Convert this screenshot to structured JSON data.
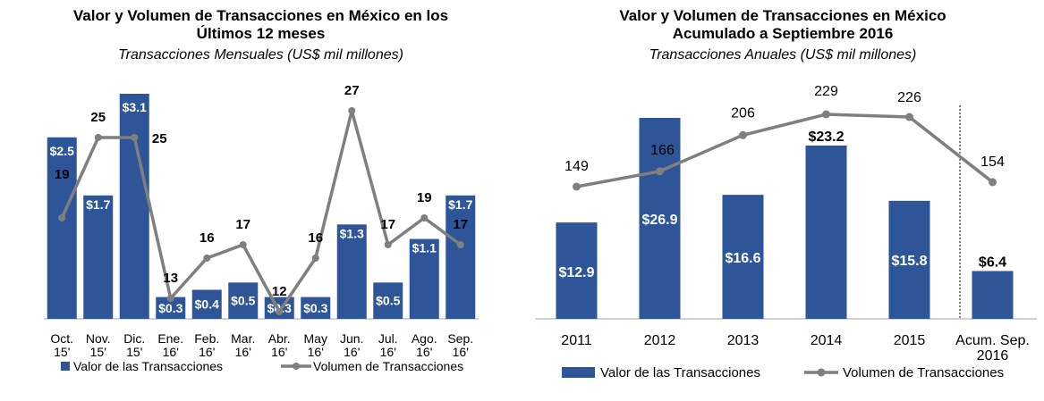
{
  "colors": {
    "bar": "#2e5597",
    "line": "#7f7f7f",
    "axis": "#a6a6a6",
    "divider": "#000000"
  },
  "chart_data": [
    {
      "type": "bar",
      "title": "Valor y Volumen de Transacciones en México en los Últimos 12 meses",
      "title_lines": [
        "Valor y Volumen de Transacciones en México en los",
        "Últimos 12 meses"
      ],
      "subtitle": "Transacciones Mensuales (US$ mil millones)",
      "categories": [
        [
          "Oct.",
          "15'"
        ],
        [
          "Nov.",
          "15'"
        ],
        [
          "Dic.",
          "15'"
        ],
        [
          "Ene.",
          "16'"
        ],
        [
          "Feb.",
          "16'"
        ],
        [
          "Mar.",
          "16'"
        ],
        [
          "Abr.",
          "16'"
        ],
        [
          "May",
          "16'"
        ],
        [
          "Jun.",
          "16'"
        ],
        [
          "Jul.",
          "16'"
        ],
        [
          "Ago.",
          "16'"
        ],
        [
          "Sep.",
          "16'"
        ]
      ],
      "series": [
        {
          "name": "Valor de las Transacciones",
          "type": "bar",
          "values": [
            2.5,
            1.7,
            3.1,
            0.3,
            0.4,
            0.5,
            0.3,
            0.3,
            1.3,
            0.5,
            1.1,
            1.7
          ],
          "labels": [
            "$2.5",
            "$1.7",
            "$3.1",
            "$0.3",
            "$0.4",
            "$0.5",
            "$0.3",
            "$0.3",
            "$1.3",
            "$0.5",
            "$1.1",
            "$1.7"
          ]
        },
        {
          "name": "Volumen de Transacciones",
          "type": "line",
          "values": [
            19,
            25,
            25,
            13,
            16,
            17,
            12,
            16,
            27,
            17,
            19,
            17
          ],
          "labels": [
            "19",
            "25",
            "25",
            "13",
            "16",
            "17",
            "12",
            "16",
            "27",
            "17",
            "19",
            "17"
          ]
        }
      ],
      "legend": "bottom"
    },
    {
      "type": "bar",
      "title": "Valor y Volumen de Transacciones en México Acumulado a Septiembre 2016",
      "title_lines": [
        "Valor y Volumen de Transacciones en México",
        "Acumulado a Septiembre 2016"
      ],
      "subtitle": "Transacciones Anuales (US$ mil millones)",
      "categories": [
        [
          "2011"
        ],
        [
          "2012"
        ],
        [
          "2013"
        ],
        [
          "2014"
        ],
        [
          "2015"
        ],
        [
          "Acum. Sep.",
          "2016"
        ]
      ],
      "series": [
        {
          "name": "Valor de las Transacciones",
          "type": "bar",
          "values": [
            12.9,
            26.9,
            16.6,
            23.2,
            15.8,
            6.4
          ],
          "labels": [
            "$12.9",
            "$26.9",
            "$16.6",
            "$23.2",
            "$15.8",
            "$6.4"
          ]
        },
        {
          "name": "Volumen de Transacciones",
          "type": "line",
          "values": [
            149,
            166,
            206,
            229,
            226,
            154
          ],
          "labels": [
            "149",
            "166",
            "206",
            "229",
            "226",
            "154"
          ]
        }
      ],
      "legend": "bottom"
    }
  ]
}
